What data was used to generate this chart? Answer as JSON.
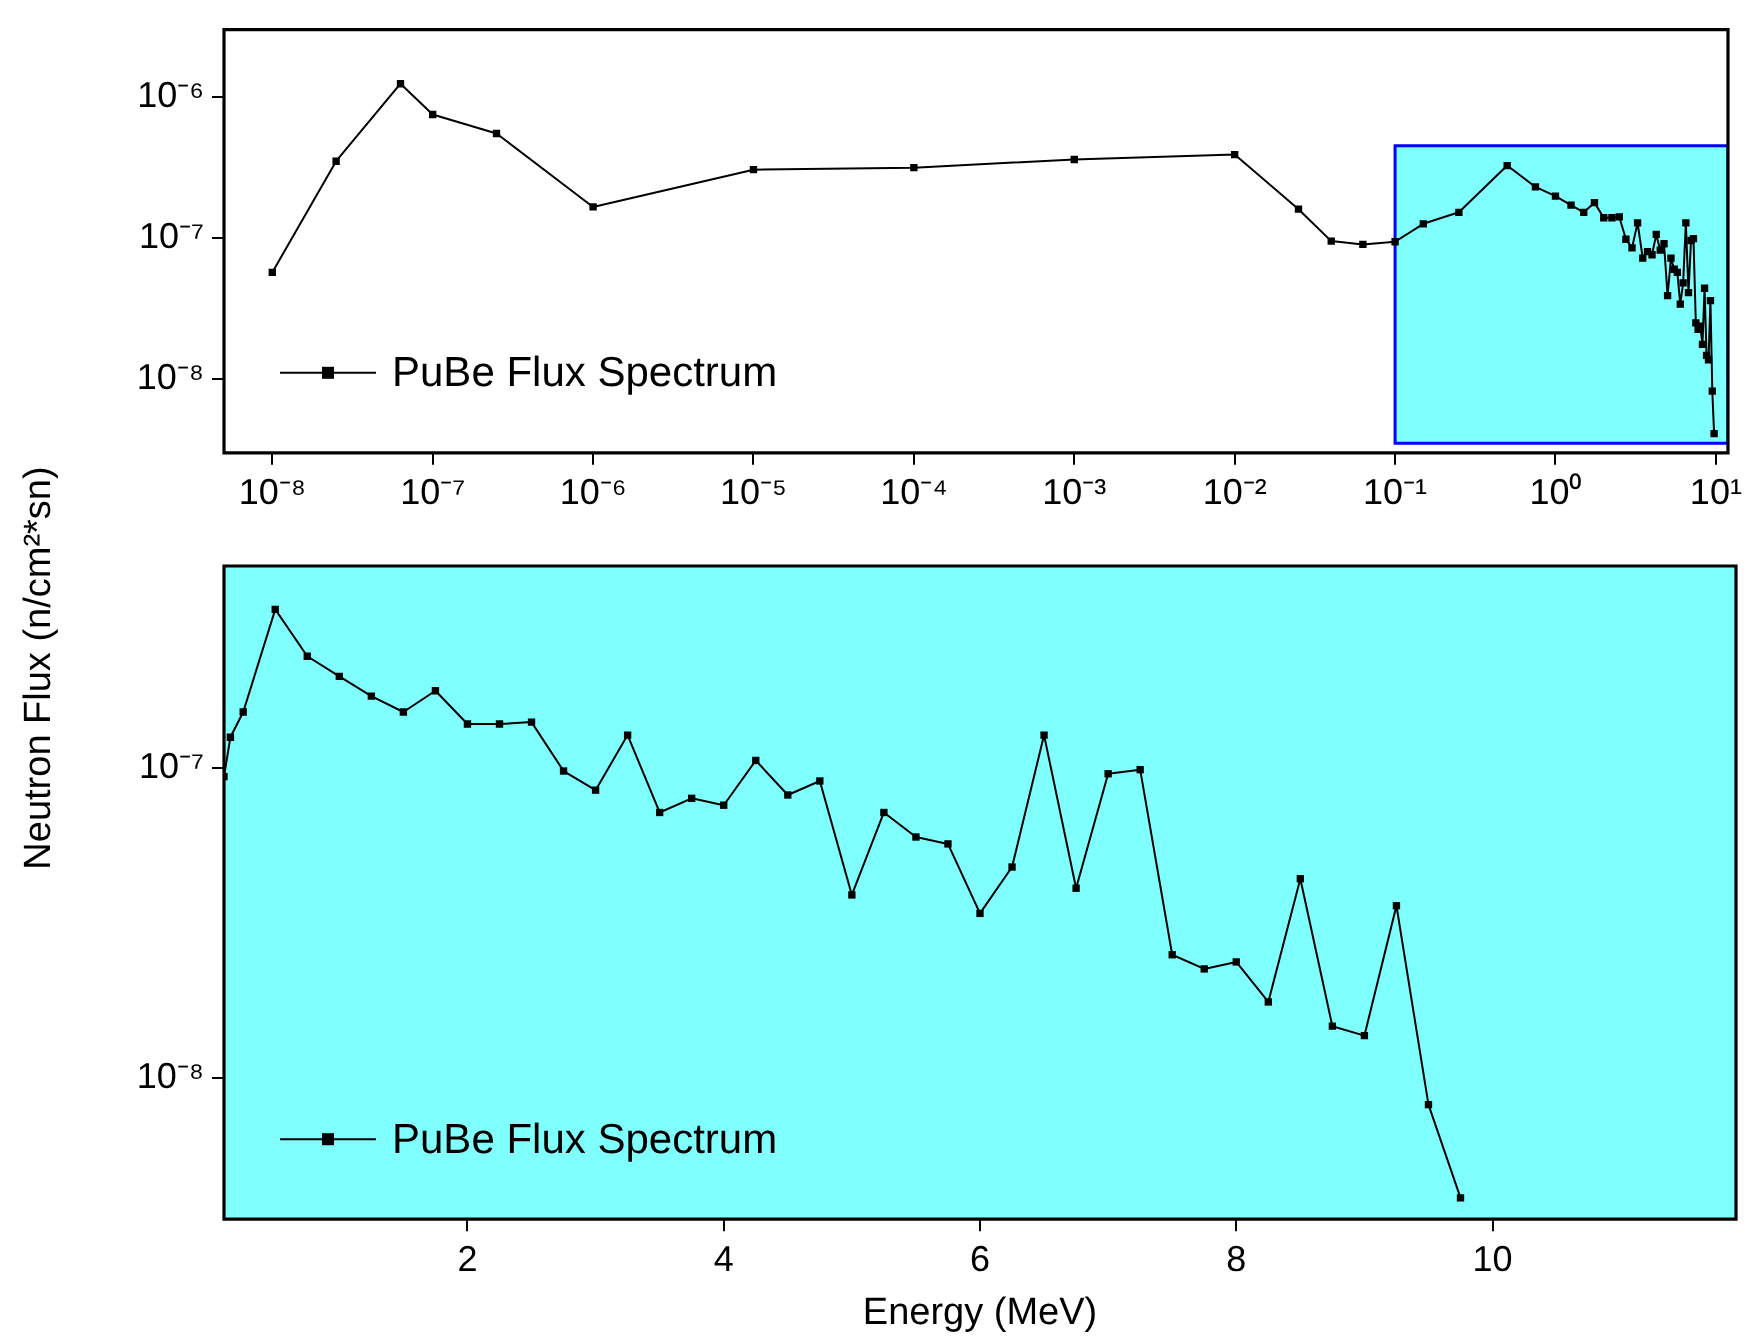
{
  "chart_data": [
    {
      "type": "line",
      "ylabel": "Neutron Flux (n/cm²*sn)",
      "log": "xy",
      "xlim": [
        5e-09,
        11.9
      ],
      "ylim": [
        3e-09,
        3e-06
      ],
      "xticks": [
        {
          "value": 1e-08,
          "label": "10⁻⁸"
        },
        {
          "value": 1e-07,
          "label": "10⁻⁷"
        },
        {
          "value": 1e-06,
          "label": "10⁻⁶"
        },
        {
          "value": 1e-05,
          "label": "10⁻⁵"
        },
        {
          "value": 0.0001,
          "label": "10⁻⁴"
        },
        {
          "value": 0.001,
          "label": "10⁻³"
        },
        {
          "value": 0.01,
          "label": "10⁻²"
        },
        {
          "value": 0.1,
          "label": "10⁻¹"
        },
        {
          "value": 1,
          "label": "10⁰"
        },
        {
          "value": 10,
          "label": "10¹"
        }
      ],
      "yticks": [
        {
          "value": 1e-08,
          "label": "10⁻⁸"
        },
        {
          "value": 1e-07,
          "label": "10⁻⁷"
        },
        {
          "value": 1e-06,
          "label": "10⁻⁶"
        }
      ],
      "bands": [
        {
          "axis": "x",
          "from": 0.1,
          "to": 11.9,
          "color": "#80ffff"
        }
      ],
      "grid": false,
      "legend": "bottom left",
      "marker": "square",
      "line_style": "solid",
      "series": [
        {
          "name": "PuBe Flux Spectrum",
          "color": "#000000",
          "x": [
            1e-08,
            2.5e-08,
            6.3e-08,
            1e-07,
            2.5e-07,
            1e-06,
            1e-05,
            0.0001,
            0.001,
            0.01,
            0.025,
            0.04,
            0.063,
            0.1,
            0.15,
            0.25,
            0.5,
            0.75,
            1,
            1.25,
            1.5,
            1.75,
            2,
            2.25,
            2.5,
            2.75,
            3,
            3.25,
            3.5,
            3.75,
            4,
            4.25,
            4.5,
            4.75,
            5,
            5.25,
            5.5,
            5.75,
            6,
            6.25,
            6.5,
            6.75,
            7,
            7.25,
            7.5,
            7.75,
            8,
            8.25,
            8.5,
            8.75,
            9,
            9.25,
            9.5,
            9.75
          ],
          "values": [
            5.7e-08,
            3.5e-07,
            1.24e-06,
            7.5e-07,
            5.5e-07,
            1.66e-07,
            3.05e-07,
            3.15e-07,
            3.6e-07,
            3.9e-07,
            1.6e-07,
            9.5e-08,
            9e-08,
            9.4e-08,
            1.26e-07,
            1.52e-07,
            3.26e-07,
            2.3e-07,
            1.98e-07,
            1.71e-07,
            1.52e-07,
            1.78e-07,
            1.39e-07,
            1.39e-07,
            1.41e-07,
            9.8e-08,
            8.5e-08,
            1.28e-07,
            7.2e-08,
            8e-08,
            7.6e-08,
            1.06e-07,
            8.2e-08,
            9.1e-08,
            3.9e-08,
            7.2e-08,
            6e-08,
            5.7e-08,
            3.4e-08,
            4.8e-08,
            1.28e-07,
            4.1e-08,
            9.6e-08,
            9.9e-08,
            2.5e-08,
            2.25e-08,
            2.37e-08,
            1.76e-08,
            4.4e-08,
            1.47e-08,
            1.37e-08,
            3.6e-08,
            8.2e-09,
            4.1e-09
          ]
        }
      ]
    },
    {
      "type": "line",
      "xlabel": "Energy (MeV)",
      "log": "y",
      "xlim": [
        0.1,
        11.9
      ],
      "ylim": [
        3.5e-09,
        4.5e-07
      ],
      "xticks": [
        2,
        4,
        6,
        8,
        10
      ],
      "yticks": [
        {
          "value": 1e-08,
          "label": "10⁻⁸"
        },
        {
          "value": 1e-07,
          "label": "10⁻⁷"
        }
      ],
      "bands": [
        {
          "axis": "x",
          "from": 0.1,
          "to": 11.9,
          "color": "#80ffff"
        }
      ],
      "grid": false,
      "legend": "bottom left",
      "marker": "square",
      "line_style": "solid",
      "series": [
        {
          "name": "PuBe Flux Spectrum",
          "color": "#000000",
          "x": [
            0.1,
            0.15,
            0.25,
            0.5,
            0.75,
            1,
            1.25,
            1.5,
            1.75,
            2,
            2.25,
            2.5,
            2.75,
            3,
            3.25,
            3.5,
            3.75,
            4,
            4.25,
            4.5,
            4.75,
            5,
            5.25,
            5.5,
            5.75,
            6,
            6.25,
            6.5,
            6.75,
            7,
            7.25,
            7.5,
            7.75,
            8,
            8.25,
            8.5,
            8.75,
            9,
            9.25,
            9.5,
            9.75
          ],
          "values": [
            9.4e-08,
            1.26e-07,
            1.52e-07,
            3.26e-07,
            2.3e-07,
            1.98e-07,
            1.71e-07,
            1.52e-07,
            1.78e-07,
            1.39e-07,
            1.39e-07,
            1.41e-07,
            9.8e-08,
            8.5e-08,
            1.28e-07,
            7.2e-08,
            8e-08,
            7.6e-08,
            1.06e-07,
            8.2e-08,
            9.1e-08,
            3.9e-08,
            7.2e-08,
            6e-08,
            5.7e-08,
            3.4e-08,
            4.8e-08,
            1.28e-07,
            4.1e-08,
            9.6e-08,
            9.9e-08,
            2.5e-08,
            2.25e-08,
            2.37e-08,
            1.76e-08,
            4.4e-08,
            1.47e-08,
            1.37e-08,
            3.6e-08,
            8.2e-09,
            4.1e-09
          ]
        }
      ]
    }
  ]
}
